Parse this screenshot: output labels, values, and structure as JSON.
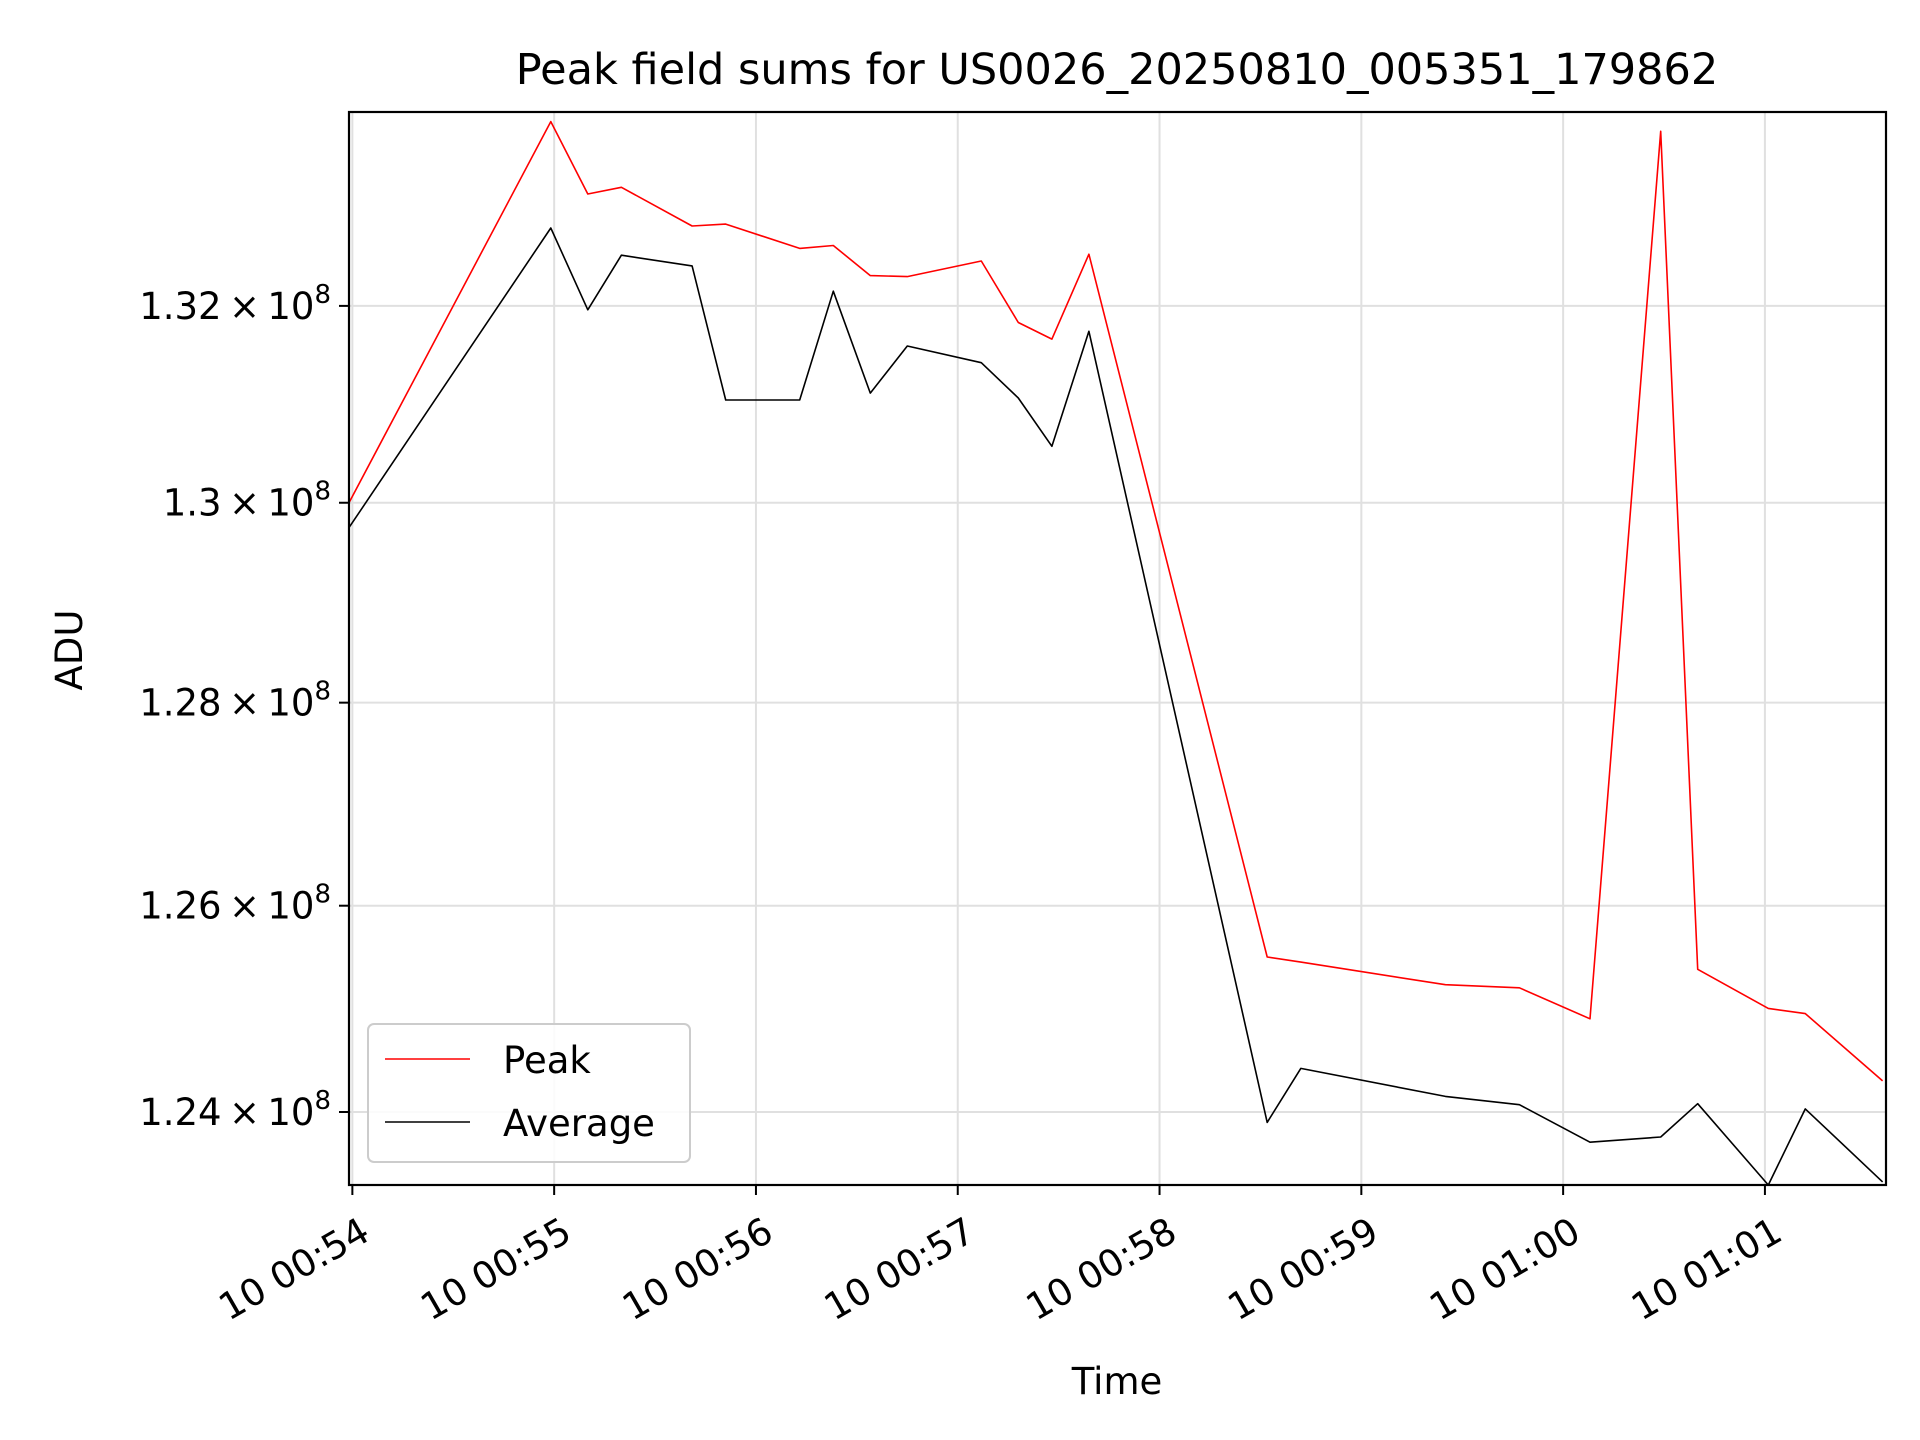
{
  "chart_data": {
    "type": "line",
    "title": "Peak field sums for US0026_20250810_005351_179862",
    "xlabel": "Time",
    "ylabel": "ADU",
    "y_scale": "log",
    "grid": true,
    "legend_position": "lower-left",
    "xlim": [
      "00:53:59",
      "00:61:36"
    ],
    "ylim": [
      123300000,
      134000000
    ],
    "x_ticks": [
      {
        "t": "00:54:00",
        "label": "10 00:54"
      },
      {
        "t": "00:55:00",
        "label": "10 00:55"
      },
      {
        "t": "00:56:00",
        "label": "10 00:56"
      },
      {
        "t": "00:57:00",
        "label": "10 00:57"
      },
      {
        "t": "00:58:00",
        "label": "10 00:58"
      },
      {
        "t": "00:59:00",
        "label": "10 00:59"
      },
      {
        "t": "01:00:00",
        "label": "10 01:00"
      },
      {
        "t": "01:01:00",
        "label": "10 01:01"
      }
    ],
    "y_ticks": [
      {
        "value": 124000000,
        "mantissa": "1.24",
        "base": "10",
        "exp": "8"
      },
      {
        "value": 126000000,
        "mantissa": "1.26",
        "base": "10",
        "exp": "8"
      },
      {
        "value": 128000000,
        "mantissa": "1.28",
        "base": "10",
        "exp": "8"
      },
      {
        "value": 130000000,
        "mantissa": "1.3",
        "base": "10",
        "exp": "8"
      },
      {
        "value": 132000000,
        "mantissa": "1.32",
        "base": "10",
        "exp": "8"
      }
    ],
    "series": [
      {
        "name": "Peak",
        "color": "#ff0000",
        "points": [
          {
            "t": "00:53:56",
            "y": 130000000
          },
          {
            "t": "00:54:59",
            "y": 133900000
          },
          {
            "t": "00:55:10",
            "y": 133150000
          },
          {
            "t": "00:55:20",
            "y": 133220000
          },
          {
            "t": "00:55:41",
            "y": 132820000
          },
          {
            "t": "00:55:51",
            "y": 132840000
          },
          {
            "t": "00:56:13",
            "y": 132590000
          },
          {
            "t": "00:56:23",
            "y": 132620000
          },
          {
            "t": "00:56:34",
            "y": 132310000
          },
          {
            "t": "00:56:45",
            "y": 132300000
          },
          {
            "t": "00:57:07",
            "y": 132460000
          },
          {
            "t": "00:57:18",
            "y": 131830000
          },
          {
            "t": "00:57:28",
            "y": 131660000
          },
          {
            "t": "00:57:39",
            "y": 132530000
          },
          {
            "t": "00:58:32",
            "y": 125500000
          },
          {
            "t": "00:58:42",
            "y": 125450000
          },
          {
            "t": "00:59:25",
            "y": 125230000
          },
          {
            "t": "00:59:47",
            "y": 125200000
          },
          {
            "t": "01:00:08",
            "y": 124900000
          },
          {
            "t": "01:00:29",
            "y": 133800000
          },
          {
            "t": "01:00:40",
            "y": 125380000
          },
          {
            "t": "01:01:01",
            "y": 125000000
          },
          {
            "t": "01:01:12",
            "y": 124950000
          },
          {
            "t": "01:01:35",
            "y": 124300000
          }
        ]
      },
      {
        "name": "Average",
        "color": "#000000",
        "points": [
          {
            "t": "00:53:56",
            "y": 129750000
          },
          {
            "t": "00:54:59",
            "y": 132800000
          },
          {
            "t": "00:55:10",
            "y": 131960000
          },
          {
            "t": "00:55:20",
            "y": 132520000
          },
          {
            "t": "00:55:41",
            "y": 132410000
          },
          {
            "t": "00:55:51",
            "y": 131040000
          },
          {
            "t": "00:56:13",
            "y": 131040000
          },
          {
            "t": "00:56:23",
            "y": 132150000
          },
          {
            "t": "00:56:34",
            "y": 131110000
          },
          {
            "t": "00:56:45",
            "y": 131590000
          },
          {
            "t": "00:57:07",
            "y": 131420000
          },
          {
            "t": "00:57:18",
            "y": 131060000
          },
          {
            "t": "00:57:28",
            "y": 130570000
          },
          {
            "t": "00:57:39",
            "y": 131740000
          },
          {
            "t": "00:58:32",
            "y": 123900000
          },
          {
            "t": "00:58:42",
            "y": 124420000
          },
          {
            "t": "00:59:25",
            "y": 124150000
          },
          {
            "t": "00:59:47",
            "y": 124070000
          },
          {
            "t": "01:00:08",
            "y": 123710000
          },
          {
            "t": "01:00:29",
            "y": 123760000
          },
          {
            "t": "01:00:40",
            "y": 124080000
          },
          {
            "t": "01:01:01",
            "y": 123300000
          },
          {
            "t": "01:01:12",
            "y": 124030000
          },
          {
            "t": "01:01:35",
            "y": 123330000
          }
        ]
      }
    ]
  }
}
